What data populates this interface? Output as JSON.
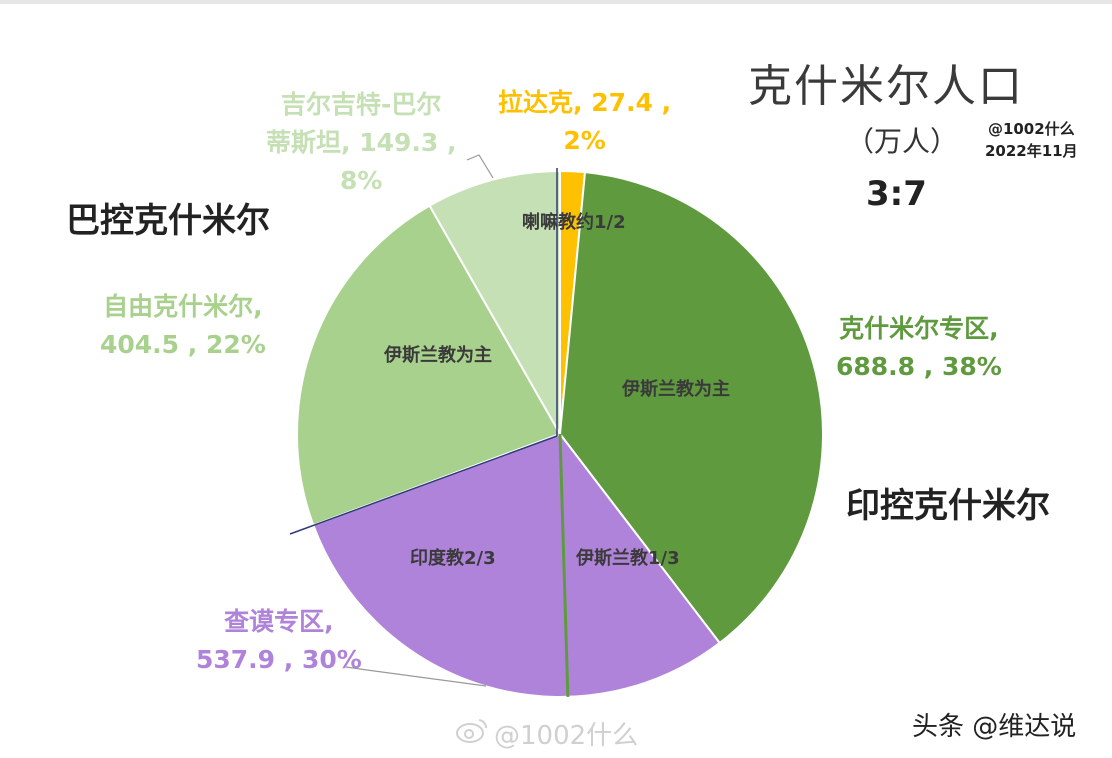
{
  "title": "克什米尔人口",
  "unit": "（万人）",
  "credit_handle": "@1002什么",
  "credit_date": "2022年11月",
  "ratio": "3:7",
  "region_pakistan": "巴控克什米尔",
  "region_india": "印控克什米尔",
  "watermark": "@1002什么",
  "source": "头条 @维达说",
  "inner_labels": {
    "ladakh": "喇嘛教约1/2",
    "kashmir_islam": "伊斯兰教为主",
    "azad_islam": "伊斯兰教为主",
    "jammu_islam": "伊斯兰教1/3",
    "jammu_hindu": "印度教2/3"
  },
  "colors": {
    "ladakh": "#ffc000",
    "kashmir": "#5f9a3f",
    "jammu": "#b083da",
    "azad": "#a9d18e",
    "gb": "#c5e0b4"
  },
  "chart_data": {
    "type": "pie",
    "title": "克什米尔人口",
    "unit": "（万人）",
    "slices": [
      {
        "key": "ladakh",
        "name": "拉达克",
        "value": 27.4,
        "percent": "2%",
        "label_lines": [
          "拉达克, 27.4 ,",
          "2%"
        ]
      },
      {
        "key": "kashmir",
        "name": "克什米尔专区",
        "value": 688.8,
        "percent": "38%",
        "label_lines": [
          "克什米尔专区,",
          "688.8 , 38%"
        ]
      },
      {
        "key": "jammu",
        "name": "查谟专区",
        "value": 537.9,
        "percent": "30%",
        "label_lines": [
          "查谟专区,",
          "537.9 , 30%"
        ]
      },
      {
        "key": "azad",
        "name": "自由克什米尔",
        "value": 404.5,
        "percent": "22%",
        "label_lines": [
          "自由克什米尔,",
          "404.5 , 22%"
        ]
      },
      {
        "key": "gb",
        "name": "吉尔吉特-巴尔蒂斯坦",
        "value": 149.3,
        "percent": "8%",
        "label_lines": [
          "吉尔吉特-巴尔",
          "蒂斯坦, 149.3 ,",
          "8%"
        ]
      }
    ],
    "jammu_split": {
      "islam_fraction": 0.333,
      "hindu_fraction": 0.667
    }
  }
}
